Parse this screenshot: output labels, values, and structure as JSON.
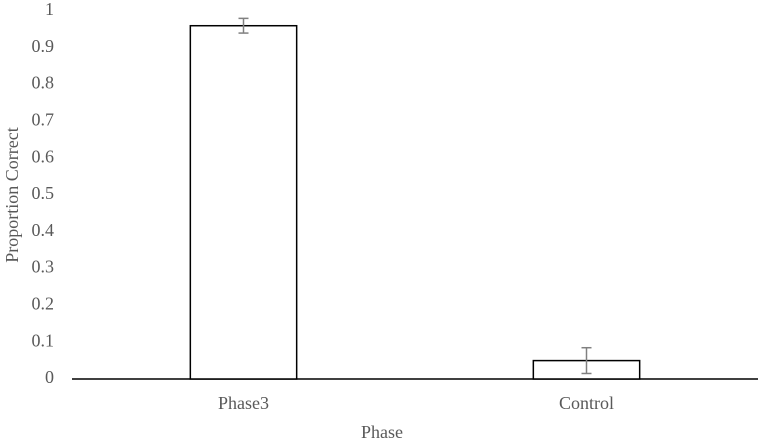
{
  "chart_data": {
    "type": "bar",
    "xlabel": "Phase",
    "ylabel": "Proportion Correct",
    "categories": [
      "Phase3",
      "Control"
    ],
    "values": [
      0.96,
      0.05
    ],
    "errors": [
      0.02,
      0.035
    ],
    "color": "#ffffff",
    "edgecolor": "#000000",
    "error_color": "#808080",
    "ylim": [
      0,
      1
    ],
    "yticks": [
      0,
      0.1,
      0.2,
      0.3,
      0.4,
      0.5,
      0.6,
      0.7,
      0.8,
      0.9,
      1
    ],
    "grid": false
  }
}
